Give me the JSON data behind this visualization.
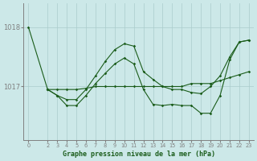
{
  "background_color": "#cce8e8",
  "grid_color": "#aacccc",
  "line_color": "#1a5c1a",
  "axis_color": "#808080",
  "title": "Graphe pression niveau de la mer (hPa)",
  "yticks": [
    1017,
    1018
  ],
  "xlim": [
    -0.5,
    23.5
  ],
  "ylim": [
    1016.1,
    1018.4
  ],
  "xtick_labels": [
    "0",
    "2",
    "3",
    "4",
    "5",
    "6",
    "7",
    "8",
    "9",
    "10",
    "11",
    "12",
    "13",
    "14",
    "15",
    "16",
    "17",
    "18",
    "19",
    "20",
    "21",
    "22",
    "23"
  ],
  "xtick_vals": [
    0,
    2,
    3,
    4,
    5,
    6,
    7,
    8,
    9,
    10,
    11,
    12,
    13,
    14,
    15,
    16,
    17,
    18,
    19,
    20,
    21,
    22,
    23
  ],
  "series": [
    {
      "x": [
        0,
        2,
        3,
        4,
        5,
        6,
        7,
        8,
        9,
        10,
        11,
        12,
        13,
        14,
        15,
        16,
        17,
        18,
        19,
        20,
        21,
        22,
        23
      ],
      "y": [
        1018.0,
        1016.95,
        1016.95,
        1016.95,
        1016.95,
        1016.97,
        1017.0,
        1017.0,
        1017.0,
        1017.0,
        1017.0,
        1017.0,
        1017.0,
        1017.0,
        1017.0,
        1017.0,
        1017.05,
        1017.05,
        1017.05,
        1017.1,
        1017.15,
        1017.2,
        1017.25
      ]
    },
    {
      "x": [
        2,
        3,
        4,
        5,
        6,
        7,
        8,
        9,
        10,
        11,
        12,
        13,
        14,
        15,
        16,
        17,
        18,
        19,
        20,
        21,
        22,
        23
      ],
      "y": [
        1016.95,
        1016.85,
        1016.78,
        1016.78,
        1016.95,
        1017.18,
        1017.42,
        1017.62,
        1017.72,
        1017.68,
        1017.25,
        1017.12,
        1017.0,
        1016.95,
        1016.95,
        1016.9,
        1016.88,
        1017.0,
        1017.18,
        1017.5,
        1017.75,
        1017.78
      ]
    },
    {
      "x": [
        2,
        3,
        4,
        5,
        6,
        7,
        8,
        9,
        10,
        11,
        12,
        13,
        14,
        15,
        16,
        17,
        18,
        19,
        20,
        21,
        22,
        23
      ],
      "y": [
        1016.95,
        1016.85,
        1016.68,
        1016.68,
        1016.85,
        1017.05,
        1017.22,
        1017.38,
        1017.48,
        1017.38,
        1016.95,
        1016.7,
        1016.68,
        1016.7,
        1016.68,
        1016.68,
        1016.55,
        1016.55,
        1016.85,
        1017.45,
        1017.75,
        1017.78
      ]
    }
  ]
}
